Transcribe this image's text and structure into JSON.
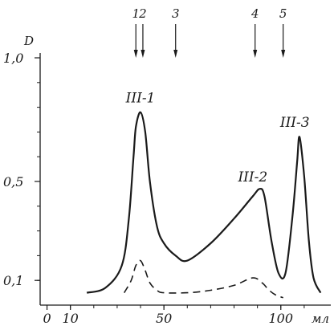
{
  "chart_data": {
    "type": "line",
    "ylabel": "D",
    "xlabel": "мл",
    "xlim": [
      -5,
      120
    ],
    "ylim": [
      0,
      1.0
    ],
    "x_ticks": [
      {
        "value": 0,
        "label": "0"
      },
      {
        "value": 10,
        "label": "10"
      },
      {
        "value": 50,
        "label": "50"
      },
      {
        "value": 100,
        "label": "100"
      }
    ],
    "y_ticks": [
      {
        "value": 0.1,
        "label": "0,1"
      },
      {
        "value": 0.5,
        "label": "0,5"
      },
      {
        "value": 1.0,
        "label": "1,0"
      }
    ],
    "series": [
      {
        "style": "solid",
        "x": [
          17,
          25,
          32,
          35,
          37,
          38,
          40,
          42,
          44,
          47,
          50,
          55,
          60,
          70,
          80,
          88,
          91,
          93,
          96,
          99,
          102,
          105,
          107,
          108,
          110,
          112,
          114,
          117
        ],
        "y": [
          0.05,
          0.07,
          0.16,
          0.35,
          0.6,
          0.72,
          0.78,
          0.7,
          0.5,
          0.32,
          0.25,
          0.2,
          0.18,
          0.25,
          0.35,
          0.44,
          0.47,
          0.44,
          0.26,
          0.13,
          0.13,
          0.36,
          0.58,
          0.68,
          0.52,
          0.26,
          0.11,
          0.05
        ]
      },
      {
        "style": "dashed",
        "x": [
          33,
          36,
          38,
          40,
          42,
          44,
          47,
          50,
          60,
          70,
          80,
          88,
          92,
          95,
          98,
          101
        ],
        "y": [
          0.05,
          0.1,
          0.16,
          0.18,
          0.14,
          0.09,
          0.06,
          0.05,
          0.05,
          0.06,
          0.08,
          0.11,
          0.09,
          0.06,
          0.04,
          0.03
        ]
      }
    ],
    "annotations": [
      {
        "text": "III-1",
        "x": 40,
        "y": 0.82
      },
      {
        "text": "III-2",
        "x": 88,
        "y": 0.5
      },
      {
        "text": "III-3",
        "x": 106,
        "y": 0.72
      }
    ],
    "markers": [
      {
        "label": "1",
        "x": 38
      },
      {
        "label": "2",
        "x": 41
      },
      {
        "label": "3",
        "x": 55
      },
      {
        "label": "4",
        "x": 89
      },
      {
        "label": "5",
        "x": 101
      }
    ]
  }
}
